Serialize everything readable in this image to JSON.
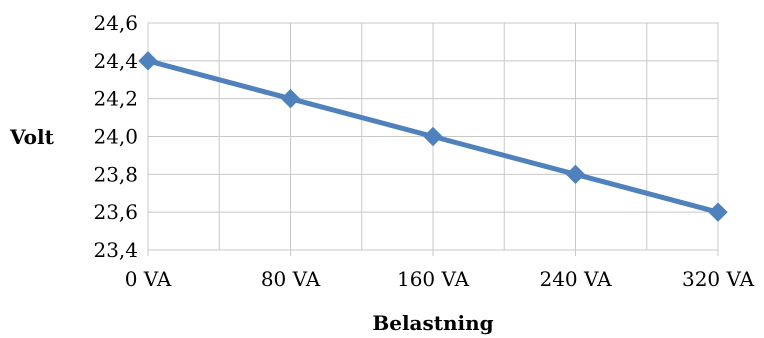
{
  "chart_data": {
    "type": "line",
    "categories": [
      "0 VA",
      "80 VA",
      "160 VA",
      "240 VA",
      "320 VA"
    ],
    "series": [
      {
        "values": [
          24.4,
          24.2,
          24.0,
          23.8,
          23.6
        ],
        "color": "#4f81bd"
      }
    ],
    "xlabel": "Belastning",
    "ylabel": "Volt",
    "ylim": [
      23.4,
      24.6
    ],
    "yticks": [
      23.4,
      23.6,
      23.8,
      24.0,
      24.2,
      24.4,
      24.6
    ],
    "ytick_labels": [
      "23,4",
      "23,6",
      "23,8",
      "24,0",
      "24,2",
      "24,4",
      "24,6"
    ],
    "grid": true,
    "marker": "diamond",
    "grid_color": "#c8c8c8"
  }
}
